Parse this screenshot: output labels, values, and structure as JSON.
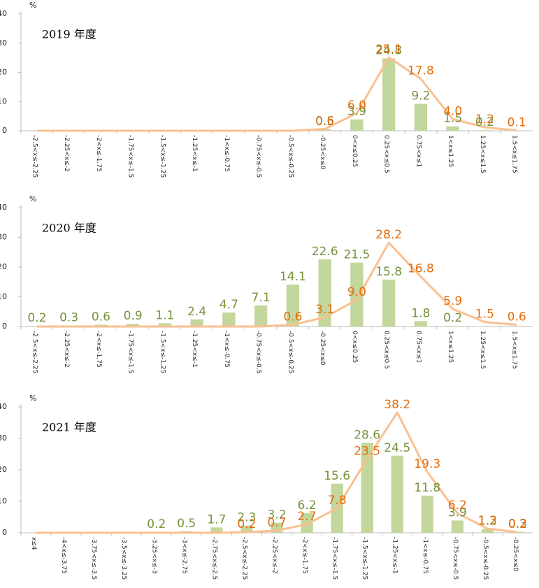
{
  "chart_data": [
    {
      "type": "bar-line",
      "title": "2019 年度",
      "y_unit": "%",
      "categories": [
        "-2.5<x≤-2.25",
        "-2.25<x≤-2",
        "-2<x≤-1.75",
        "-1.75<x≤-1.5",
        "-1.5<x≤-1.25",
        "-1.25<x≤-1",
        "-1<x≤-0.75",
        "-0.75<x≤-0.5",
        "-0.5<x≤-0.25",
        "-0.25<x≤0",
        "0<x≤0.25",
        "0.25<x≤0.5",
        "0.75<x≤1",
        "1<x≤1.25",
        "1.25<x≤1.5",
        "1.5<x≤1.75"
      ],
      "series": [
        {
          "kind": "bar",
          "color": "#c3d69b",
          "label_color": "#76933c",
          "values": [
            0,
            0,
            0,
            0,
            0,
            0,
            0,
            0,
            0,
            0.5,
            3.9,
            24.8,
            9.2,
            1.5,
            0.2,
            0
          ],
          "value_labels": [
            null,
            null,
            null,
            null,
            null,
            null,
            null,
            null,
            null,
            "0.5",
            "3.9",
            "24.8",
            "9.2",
            "1.5",
            "0.2",
            null
          ]
        },
        {
          "kind": "line",
          "color": "#fac090",
          "label_color": "#e46c0a",
          "values": [
            0,
            0,
            0,
            0,
            0,
            0,
            0,
            0,
            0,
            0.6,
            6.0,
            25.1,
            17.8,
            4.0,
            1.2,
            0.1
          ],
          "value_labels": [
            null,
            null,
            null,
            null,
            null,
            null,
            null,
            null,
            null,
            "0.6",
            "6.0",
            "25.1",
            "17.8",
            "4.0",
            "1.2",
            "0.1"
          ]
        }
      ],
      "ylim": [
        0,
        40
      ],
      "yticks": [
        0,
        10,
        20,
        30,
        40
      ]
    },
    {
      "type": "bar-line",
      "title": "2020 年度",
      "y_unit": "%",
      "categories": [
        "-2.5<x≤-2.25",
        "-2.25<x≤-2",
        "-2<x≤-1.75",
        "-1.75<x≤-1.5",
        "-1.5<x≤-1.25",
        "-1.25<x≤-1",
        "-1<x≤-0.75",
        "-0.75<x≤-0.5",
        "-0.5<x≤-0.25",
        "-0.25<x≤0",
        "0<x≤0.25",
        "0.25<x≤0.5",
        "0.75<x≤1",
        "1<x≤1.25",
        "1.25<x≤1.5",
        "1.5<x≤1.75"
      ],
      "series": [
        {
          "kind": "bar",
          "color": "#c3d69b",
          "label_color": "#76933c",
          "values": [
            0.2,
            0.3,
            0.6,
            0.9,
            1.1,
            2.4,
            4.7,
            7.1,
            14.1,
            22.6,
            21.5,
            15.8,
            1.8,
            0.2,
            0,
            0
          ],
          "value_labels": [
            "0.2",
            "0.3",
            "0.6",
            "0.9",
            "1.1",
            "2.4",
            "4.7",
            "7.1",
            "14.1",
            "22.6",
            "21.5",
            "15.8",
            "1.8",
            "0.2",
            null,
            null
          ]
        },
        {
          "kind": "line",
          "color": "#fac090",
          "label_color": "#e46c0a",
          "values": [
            0,
            0,
            0,
            0,
            0,
            0,
            0,
            0,
            0.6,
            3.1,
            9.0,
            28.2,
            16.8,
            5.9,
            1.5,
            0.6
          ],
          "value_labels": [
            null,
            null,
            null,
            null,
            null,
            null,
            null,
            null,
            "0.6",
            "3.1",
            "9.0",
            "28.2",
            "16.8",
            "5.9",
            "1.5",
            "0.6"
          ]
        }
      ],
      "ylim": [
        0,
        40
      ],
      "yticks": [
        0,
        10,
        20,
        30,
        40
      ]
    },
    {
      "type": "bar-line",
      "title": "2021 年度",
      "y_unit": "%",
      "categories": [
        "x≤4",
        "-4<x≤-3.75",
        "-3.75<x≤-3.5",
        "-3.5<x≤-3.25",
        "-3.25<x≤-3",
        "-3<x≤-2.75",
        "-2.75<x≤-2.5",
        "-2.5<x≤-2.25",
        "-2.25<x≤-2",
        "-2<x≤-1.75",
        "-1.75<x≤-1.5",
        "-1.5<x≤-1.25",
        "-1.25<x≤-1",
        "-1<x≤-0.75",
        "-0.75<x≤-0.5",
        "-0.5<x≤-0.25",
        "-0.25<x≤0"
      ],
      "series": [
        {
          "kind": "bar",
          "color": "#c3d69b",
          "label_color": "#76933c",
          "values": [
            0,
            0,
            0,
            0,
            0.2,
            0.5,
            1.7,
            2.3,
            3.2,
            6.2,
            15.6,
            28.6,
            24.5,
            11.8,
            3.9,
            1.2,
            0.3
          ],
          "value_labels": [
            null,
            null,
            null,
            null,
            "0.2",
            "0.5",
            "1.7",
            "2.3",
            "3.2",
            "6.2",
            "15.6",
            "28.6",
            "24.5",
            "11.8",
            "3.9",
            "1.2",
            "0.3"
          ]
        },
        {
          "kind": "line",
          "color": "#fac090",
          "label_color": "#e46c0a",
          "values": [
            0,
            0,
            0,
            0,
            0,
            0,
            0,
            0.2,
            0.7,
            2.7,
            7.8,
            23.5,
            38.2,
            19.3,
            6.2,
            1.3,
            0.2
          ],
          "value_labels": [
            null,
            null,
            null,
            null,
            null,
            null,
            null,
            "0.2",
            "0.7",
            "2.7",
            "7.8",
            "23.5",
            "38.2",
            "19.3",
            "6.2",
            "1.3",
            "0.2"
          ]
        }
      ],
      "ylim": [
        0,
        40
      ],
      "yticks": [
        0,
        10,
        20,
        30,
        40
      ]
    }
  ]
}
